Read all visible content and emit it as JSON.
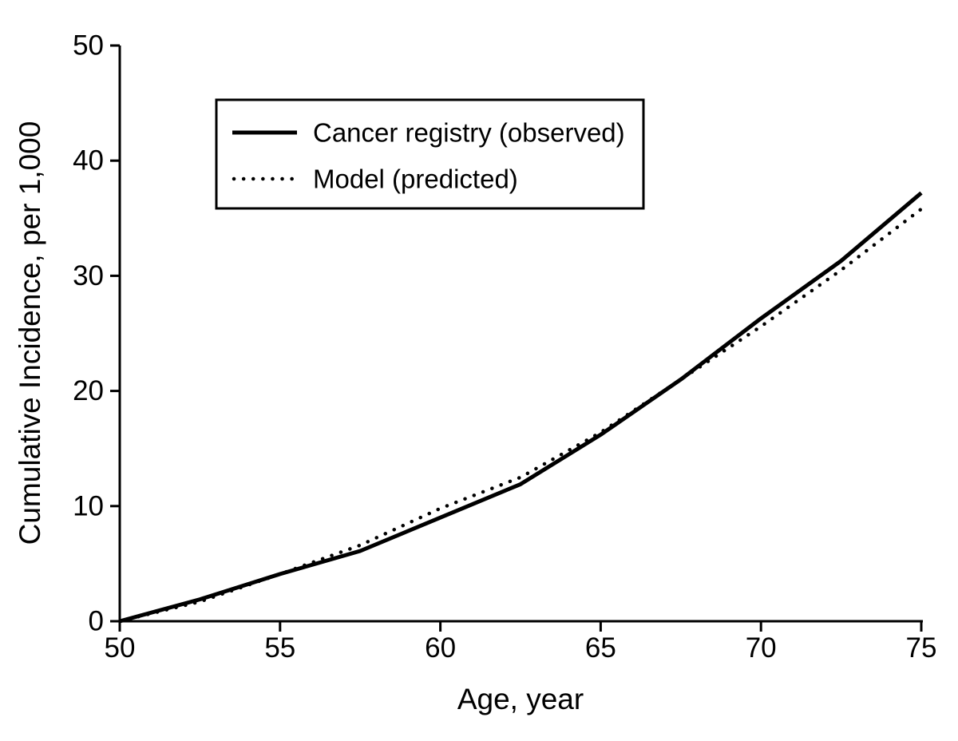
{
  "chart_data": {
    "type": "line",
    "title": "",
    "xlabel": "Age, year",
    "ylabel": "Cumulative Incidence, per 1,000",
    "xlim": [
      50,
      75
    ],
    "ylim": [
      0,
      50
    ],
    "xticks": [
      50,
      55,
      60,
      65,
      70,
      75
    ],
    "yticks": [
      0,
      10,
      20,
      30,
      40,
      50
    ],
    "x": [
      50,
      52.5,
      55,
      57.5,
      60,
      62.5,
      65,
      67.5,
      70,
      72.5,
      75
    ],
    "series": [
      {
        "name": "Cancer registry (observed)",
        "style": "solid",
        "values": [
          0,
          1.9,
          4.1,
          6.1,
          9.0,
          11.9,
          16.2,
          21.0,
          26.3,
          31.3,
          37.2
        ]
      },
      {
        "name": "Model (predicted)",
        "style": "dotted",
        "values": [
          0,
          1.7,
          4.1,
          6.6,
          9.8,
          12.5,
          16.4,
          21.0,
          25.6,
          30.5,
          35.8
        ]
      }
    ],
    "legend_position": "upper-left-inside",
    "grid": false,
    "line_color": "#000000",
    "background_color": "#ffffff"
  }
}
